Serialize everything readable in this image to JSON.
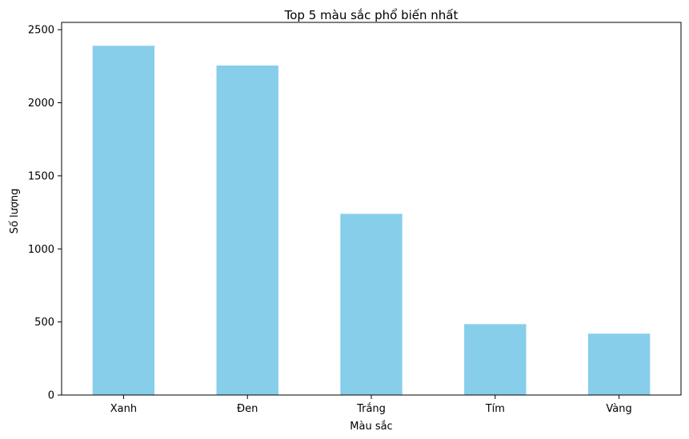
{
  "chart_data": {
    "type": "bar",
    "title": "Top 5 màu sắc phổ biến nhất",
    "xlabel": "Màu sắc",
    "ylabel": "Số lượng",
    "categories": [
      "Xanh",
      "Đen",
      "Trắng",
      "Tím",
      "Vàng"
    ],
    "values": [
      2390,
      2255,
      1240,
      485,
      420
    ],
    "ylim": [
      0,
      2550
    ],
    "yticks": [
      0,
      500,
      1000,
      1500,
      2000,
      2500
    ],
    "bar_color": "#87ceeb",
    "grid": false,
    "legend": "none"
  }
}
